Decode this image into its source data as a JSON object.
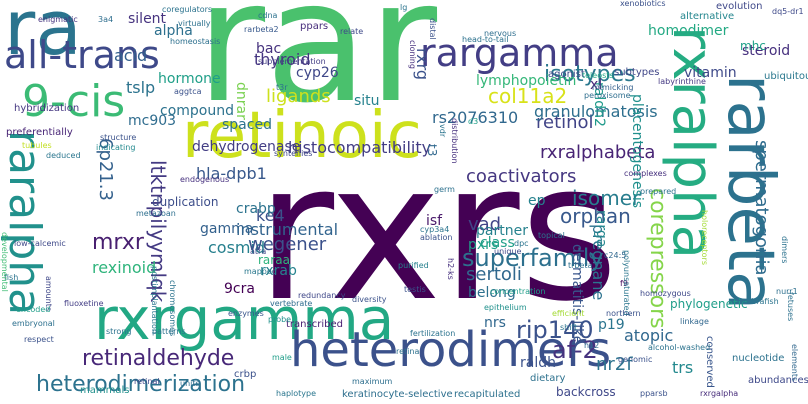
{
  "words": [
    {
      "text": "rxrs",
      "color": "#440154"
    },
    {
      "text": "rar",
      "color": "#4ac16d"
    },
    {
      "text": "retinoic",
      "color": "#cde11d"
    },
    {
      "text": "ra",
      "color": "#2b748e"
    },
    {
      "text": "rxralpha",
      "color": "#25ac82"
    },
    {
      "text": "rarbeta",
      "color": "#2c728e"
    },
    {
      "text": "rxrgamma",
      "color": "#22a884"
    },
    {
      "text": "heterodimers",
      "color": "#3b518b"
    },
    {
      "text": "9-cis",
      "color": "#3bbb75"
    },
    {
      "text": "all-trans",
      "color": "#3e4989"
    },
    {
      "text": "rargamma",
      "color": "#433e85"
    },
    {
      "text": "raralpha",
      "color": "#21918c"
    },
    {
      "text": "heterodimerization",
      "color": "#2c728e"
    },
    {
      "text": "retinaldehyde",
      "color": "#482878"
    },
    {
      "text": "superfamily",
      "color": "#2d708e"
    },
    {
      "text": "isotypes",
      "color": "#2a788e"
    },
    {
      "text": "col11a2",
      "color": "#d8e219"
    },
    {
      "text": "rip140",
      "color": "#3b528b"
    },
    {
      "text": "af-2",
      "color": "#46327e"
    },
    {
      "text": "lymphopoietin",
      "color": "#35b779"
    },
    {
      "text": "rxrgalpha",
      "color": "#472c7a"
    },
    {
      "text": "retinol",
      "color": "#414487"
    },
    {
      "text": "rs2076310",
      "color": "#31688e"
    },
    {
      "text": "granulomatosis",
      "color": "#2e6f8e"
    },
    {
      "text": "rxralphabeta",
      "color": "#482475"
    },
    {
      "text": "histocompatibility",
      "color": "#433d84"
    },
    {
      "text": "dehydrogenase",
      "color": "#433d84"
    },
    {
      "text": "coactivators",
      "color": "#453781"
    },
    {
      "text": "ltktnpilyymlqk",
      "color": "#443a83"
    },
    {
      "text": "mrxr",
      "color": "#481f70"
    },
    {
      "text": "hla-dpb1",
      "color": "#38588c"
    },
    {
      "text": "mc903",
      "color": "#2f6c8e"
    },
    {
      "text": "6p21.3",
      "color": "#34618d"
    },
    {
      "text": "cosmid",
      "color": "#27808e"
    },
    {
      "text": "gamma",
      "color": "#34618d"
    },
    {
      "text": "instrumental",
      "color": "#32648e"
    },
    {
      "text": "wegener",
      "color": "#3b518b"
    },
    {
      "text": "rexinoid",
      "color": "#2fb47c"
    },
    {
      "text": "9cra",
      "color": "#440154"
    },
    {
      "text": "rxrab",
      "color": "#26828e"
    },
    {
      "text": "raraa",
      "color": "#2fb47c"
    },
    {
      "text": "ke4",
      "color": "#3b528b"
    },
    {
      "text": "vad",
      "color": "#414487"
    },
    {
      "text": "pxrs",
      "color": "#1fa088"
    },
    {
      "text": "partner",
      "color": "#26828e"
    },
    {
      "text": "orphan",
      "color": "#38598c"
    },
    {
      "text": "isomer",
      "color": "#287d8e"
    },
    {
      "text": "ep",
      "color": "#26828e"
    },
    {
      "text": "sertoli",
      "color": "#31688e"
    },
    {
      "text": "belong",
      "color": "#2d708e"
    },
    {
      "text": "nrs",
      "color": "#31688e"
    },
    {
      "text": "raldh",
      "color": "#3b528b"
    },
    {
      "text": "dermatitis-like",
      "color": "#39568c"
    },
    {
      "text": "pregnane",
      "color": "#2c728e"
    },
    {
      "text": "rarga",
      "color": "#24868e"
    },
    {
      "text": "p19",
      "color": "#2b748e"
    },
    {
      "text": "atopic",
      "color": "#31688e"
    },
    {
      "text": "nr2f",
      "color": "#2c738e"
    },
    {
      "text": "trs",
      "color": "#23898e"
    },
    {
      "text": "corepressors",
      "color": "#85d54a"
    },
    {
      "text": "spermatogonia",
      "color": "#2f6c8e"
    },
    {
      "text": "vitamin",
      "color": "#3e4989"
    },
    {
      "text": "steroid",
      "color": "#46307e"
    },
    {
      "text": "mhc",
      "color": "#1fa188"
    },
    {
      "text": "homodimer",
      "color": "#23a983"
    },
    {
      "text": "placentogenesis",
      "color": "#21908d"
    },
    {
      "text": "raldh2",
      "color": "#1f9a8a"
    },
    {
      "text": "xl",
      "color": "#482878"
    },
    {
      "text": "subtypes",
      "color": "#404688"
    },
    {
      "text": "agonist",
      "color": "#3e4a89"
    },
    {
      "text": "peroxisome",
      "color": "#2e6e8e"
    },
    {
      "text": "teleosts",
      "color": "#22a785"
    },
    {
      "text": "xenobiotics",
      "color": "#3b518b"
    },
    {
      "text": "evolution",
      "color": "#3f4889"
    },
    {
      "text": "alternative",
      "color": "#24868e"
    },
    {
      "text": "ubiquitous",
      "color": "#2a788e"
    },
    {
      "text": "labyrinthine",
      "color": "#443983"
    },
    {
      "text": "thyroid",
      "color": "#453581"
    },
    {
      "text": "bac",
      "color": "#46327e"
    },
    {
      "text": "cyp26",
      "color": "#3f4788"
    },
    {
      "text": "rxrg",
      "color": "#3b528b"
    },
    {
      "text": "ligands",
      "color": "#cde11d"
    },
    {
      "text": "situ",
      "color": "#26828e"
    },
    {
      "text": "spaced",
      "color": "#2c728e"
    },
    {
      "text": "hormone",
      "color": "#1f9f88"
    },
    {
      "text": "compound",
      "color": "#2c728e"
    },
    {
      "text": "t3",
      "color": "#31688e"
    },
    {
      "text": "acid",
      "color": "#34608d"
    },
    {
      "text": "alpha",
      "color": "#2d708e"
    },
    {
      "text": "silent",
      "color": "#46337f"
    },
    {
      "text": "tslp",
      "color": "#2c738e"
    },
    {
      "text": "isf",
      "color": "#48186a"
    },
    {
      "text": "duplication",
      "color": "#3d4e8a"
    },
    {
      "text": "crabp",
      "color": "#2c738e"
    },
    {
      "text": "class",
      "color": "#1fa088"
    },
    {
      "text": "dnrar",
      "color": "#7ad151"
    },
    {
      "text": "pparsb",
      "color": "#3b528b"
    },
    {
      "text": "ppars",
      "color": "#472d7b"
    },
    {
      "text": "hybridization",
      "color": "#453781"
    },
    {
      "text": "preferentially",
      "color": "#482576"
    },
    {
      "text": "mapped",
      "color": "#2a788e"
    },
    {
      "text": "fish",
      "color": "#2c738e"
    },
    {
      "text": "enzymes",
      "color": "#39568c"
    },
    {
      "text": "redundancy",
      "color": "#3f4788"
    },
    {
      "text": "diversity",
      "color": "#3b528b"
    },
    {
      "text": "concentration",
      "color": "#1f9e89"
    },
    {
      "text": "f9",
      "color": "#46085c"
    },
    {
      "text": "developmental",
      "color": "#3fbc73"
    },
    {
      "text": "strong",
      "color": "#2c728e"
    },
    {
      "text": "patterns",
      "color": "#2c738e"
    },
    {
      "text": "mammals",
      "color": "#21918c"
    },
    {
      "text": "haplotype",
      "color": "#2a768e"
    },
    {
      "text": "keratinocyte-selective",
      "color": "#2e6f8e"
    },
    {
      "text": "transcribed",
      "color": "#482173"
    },
    {
      "text": "recapitulated",
      "color": "#2d718e"
    },
    {
      "text": "backcross",
      "color": "#3f4889"
    },
    {
      "text": "abundances",
      "color": "#3e4989"
    },
    {
      "text": "crbp",
      "color": "#3b518b"
    },
    {
      "text": "testis",
      "color": "#3b528b"
    },
    {
      "text": "epithelium",
      "color": "#21918c"
    },
    {
      "text": "fertilization",
      "color": "#2c738e"
    },
    {
      "text": "probe",
      "color": "#21918c"
    },
    {
      "text": "nucleotide",
      "color": "#2c728e"
    },
    {
      "text": "conserved",
      "color": "#39568c"
    },
    {
      "text": "dietary",
      "color": "#2d718e"
    },
    {
      "text": "phylogenetic",
      "color": "#1f9e89"
    },
    {
      "text": "linkage",
      "color": "#31678e"
    },
    {
      "text": "homozygous",
      "color": "#3e4989"
    },
    {
      "text": "efficient",
      "color": "#a5db36"
    },
    {
      "text": "genomic",
      "color": "#3b528b"
    },
    {
      "text": "alcohol-washed",
      "color": "#2c738e"
    },
    {
      "text": "cloning",
      "color": "#46307e"
    },
    {
      "text": "enigmatic",
      "color": "#46337f"
    },
    {
      "text": "3a4",
      "color": "#2e6e8e"
    },
    {
      "text": "virtually",
      "color": "#2d718e"
    },
    {
      "text": "coregulators",
      "color": "#2c738e"
    },
    {
      "text": "homeostasis",
      "color": "#2d708e"
    },
    {
      "text": "rarbeta2",
      "color": "#38598c"
    },
    {
      "text": "relate",
      "color": "#3e4989"
    },
    {
      "text": "supplementation",
      "color": "#433e85"
    },
    {
      "text": "lg",
      "color": "#2b748e"
    },
    {
      "text": "nervous",
      "color": "#2e6e8e"
    },
    {
      "text": "head-to-tail",
      "color": "#2c728e"
    },
    {
      "text": "mimicking",
      "color": "#34608d"
    },
    {
      "text": "aggtca",
      "color": "#3b528b"
    },
    {
      "text": "t3r",
      "color": "#2c728e"
    },
    {
      "text": "tubules",
      "color": "#c2df23"
    },
    {
      "text": "deduced",
      "color": "#2a768e"
    },
    {
      "text": "structure",
      "color": "#3b528b"
    },
    {
      "text": "indicating",
      "color": "#23898e"
    },
    {
      "text": "syntenies",
      "color": "#3f4788"
    },
    {
      "text": "endogenous",
      "color": "#46307e"
    },
    {
      "text": "metazoan",
      "color": "#2e6f8e"
    },
    {
      "text": "atra",
      "color": "#3f4889"
    },
    {
      "text": "germ",
      "color": "#2d718e"
    },
    {
      "text": "cyp3a4",
      "color": "#2b748e"
    },
    {
      "text": "ablation",
      "color": "#3b528b"
    },
    {
      "text": "dpc",
      "color": "#2b748e"
    },
    {
      "text": "topical",
      "color": "#2c728e"
    },
    {
      "text": "unique",
      "color": "#3f4889"
    },
    {
      "text": "purified",
      "color": "#27808e"
    },
    {
      "text": "fluoxetine",
      "color": "#433e85"
    },
    {
      "text": "postimplantation",
      "color": "#2a788e"
    },
    {
      "text": "chromosomes",
      "color": "#2c738e"
    },
    {
      "text": "vertebrate",
      "color": "#2f6c8e"
    },
    {
      "text": "distal",
      "color": "#3b528b"
    },
    {
      "text": "vdr",
      "color": "#2b748e"
    },
    {
      "text": "distribution",
      "color": "#46307e"
    },
    {
      "text": "d3",
      "color": "#1f9e89"
    },
    {
      "text": "cdna",
      "color": "#2c728e"
    },
    {
      "text": "h2-ks",
      "color": "#46307e"
    },
    {
      "text": "low-calcemic",
      "color": "#3e4989"
    },
    {
      "text": "amounts",
      "color": "#3f4788"
    },
    {
      "text": "encoded",
      "color": "#1f9e89"
    },
    {
      "text": "embryonal",
      "color": "#2d708e"
    },
    {
      "text": "respect",
      "color": "#3b528b"
    },
    {
      "text": "dq5-dr1",
      "color": "#3e4989"
    },
    {
      "text": "nurr1",
      "color": "#2d708e"
    },
    {
      "text": "zebrafish",
      "color": "#2b748e"
    },
    {
      "text": "polyunsaturated",
      "color": "#2a768e"
    },
    {
      "text": "c24:5",
      "color": "#31688e"
    },
    {
      "text": "trbeta",
      "color": "#2d718e"
    },
    {
      "text": "prepared",
      "color": "#2c738e"
    },
    {
      "text": "holoreceptors",
      "color": "#a5db36"
    },
    {
      "text": "fetuses",
      "color": "#2d718e"
    },
    {
      "text": "elements",
      "color": "#31688e"
    },
    {
      "text": "dimers",
      "color": "#2c728e"
    },
    {
      "text": "complexes",
      "color": "#46307e"
    },
    {
      "text": "retina",
      "color": "#2d718e"
    },
    {
      "text": "maximum",
      "color": "#2e6f8e"
    },
    {
      "text": "shift",
      "color": "#2b748e"
    },
    {
      "text": "northern",
      "color": "#3b528b"
    },
    {
      "text": "h12",
      "color": "#31688e"
    },
    {
      "text": "retinal",
      "color": "#3f4889"
    },
    {
      "text": "units",
      "color": "#2e6e8e"
    },
    {
      "text": "male",
      "color": "#1f9e89"
    }
  ]
}
